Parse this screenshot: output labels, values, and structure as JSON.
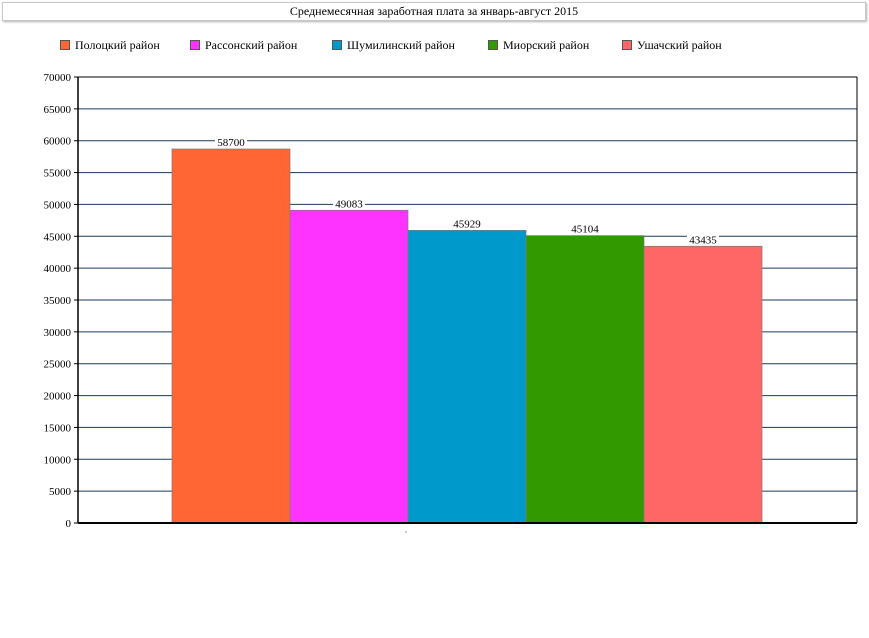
{
  "chart_data": {
    "type": "bar",
    "title": "Среднемесячная заработная плата за январь-август 2015",
    "xlabel": "",
    "ylabel": "",
    "ylim": [
      0,
      70000
    ],
    "yticks": [
      0,
      5000,
      10000,
      15000,
      20000,
      25000,
      30000,
      35000,
      40000,
      45000,
      50000,
      55000,
      60000,
      65000,
      70000
    ],
    "grid": true,
    "legend_position": "top-left",
    "series": [
      {
        "name": "Полоцкий район",
        "values": [
          58700
        ],
        "color": "#ff6633"
      },
      {
        "name": "Рассонский район",
        "values": [
          49083
        ],
        "color": "#ff33ff"
      },
      {
        "name": "Шумилинский район",
        "values": [
          45929
        ],
        "color": "#0099cc"
      },
      {
        "name": "Миорский район",
        "values": [
          45104
        ],
        "color": "#339900"
      },
      {
        "name": "Ушачский район",
        "values": [
          43435
        ],
        "color": "#ff6666"
      }
    ]
  }
}
